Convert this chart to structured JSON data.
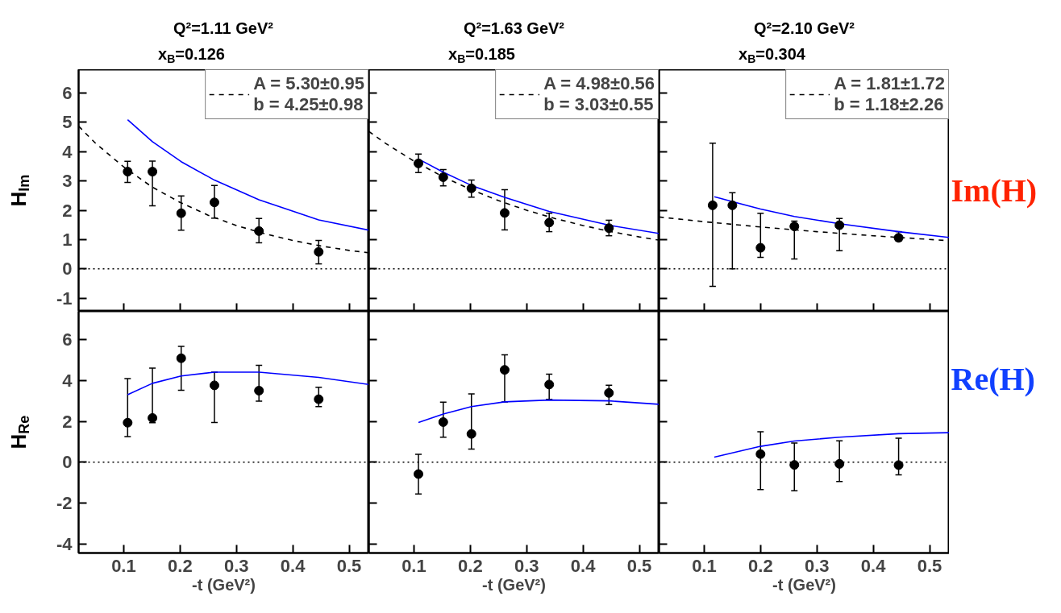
{
  "chart_data": [
    {
      "type": "scatter",
      "title": "Q²=1.11 GeV²",
      "subtitle": "x$_{B}$=0.126",
      "ylabel": "H$_{Im}$",
      "xlim": [
        0.02,
        0.535
      ],
      "ylim": [
        -1.45,
        6.8
      ],
      "xticks": [
        0.1,
        0.2,
        0.3,
        0.4,
        0.5
      ],
      "yticks": [
        -1,
        0,
        1,
        2,
        3,
        4,
        5,
        6
      ],
      "tick_labels": "y",
      "legend": "top right",
      "ref_lines": [
        {
          "axis": "y",
          "value": 0,
          "line_style": "dotted",
          "color": "#000000"
        }
      ],
      "series": [
        {
          "type": "line",
          "color": "#0000ff",
          "line_style": "solid",
          "x": [
            0.107,
            0.151,
            0.202,
            0.261,
            0.34,
            0.446,
            0.535
          ],
          "values": [
            5.09,
            4.34,
            3.66,
            3.03,
            2.36,
            1.67,
            1.32
          ]
        },
        {
          "type": "line",
          "name": "A = 5.30±0.95\nb = 4.25±0.98",
          "color": "#000000",
          "line_style": "dashed",
          "x": [
            0.02,
            0.05,
            0.1,
            0.15,
            0.2,
            0.25,
            0.3,
            0.35,
            0.4,
            0.45,
            0.5,
            0.535
          ],
          "values": [
            4.87,
            4.29,
            3.48,
            2.8,
            2.27,
            1.83,
            1.48,
            1.2,
            0.97,
            0.78,
            0.63,
            0.55
          ]
        },
        {
          "type": "scatter",
          "color": "#000000",
          "marker": "circle",
          "x": [
            0.107,
            0.151,
            0.202,
            0.261,
            0.34,
            0.446
          ],
          "values": [
            3.32,
            3.32,
            1.9,
            2.27,
            1.29,
            0.58
          ],
          "errors": [
            [
              2.95,
              3.67
            ],
            [
              2.15,
              3.68
            ],
            [
              1.32,
              2.49
            ],
            [
              1.73,
              2.85
            ],
            [
              0.89,
              1.72
            ],
            [
              0.17,
              0.97
            ]
          ]
        }
      ]
    },
    {
      "type": "scatter",
      "title": "Q²=1.63 GeV²",
      "subtitle": "x$_{B}$=0.185",
      "xlim": [
        0.02,
        0.535
      ],
      "ylim": [
        -1.45,
        6.8
      ],
      "xticks": [
        0.1,
        0.2,
        0.3,
        0.4,
        0.5
      ],
      "yticks": [
        -1,
        0,
        1,
        2,
        3,
        4,
        5,
        6
      ],
      "tick_labels": false,
      "legend": "top right",
      "ref_lines": [
        {
          "axis": "y",
          "value": 0,
          "line_style": "dotted",
          "color": "#000000"
        }
      ],
      "series": [
        {
          "type": "line",
          "color": "#0000ff",
          "line_style": "solid",
          "x": [
            0.108,
            0.152,
            0.202,
            0.261,
            0.34,
            0.446,
            0.535
          ],
          "values": [
            3.75,
            3.3,
            2.85,
            2.44,
            1.96,
            1.49,
            1.21
          ]
        },
        {
          "type": "line",
          "name": "A = 4.98±0.56\nb = 3.03±0.55",
          "color": "#000000",
          "line_style": "dashed",
          "x": [
            0.02,
            0.05,
            0.1,
            0.15,
            0.2,
            0.25,
            0.3,
            0.35,
            0.4,
            0.45,
            0.5,
            0.535
          ],
          "values": [
            4.69,
            4.28,
            3.68,
            3.16,
            2.72,
            2.33,
            2.0,
            1.72,
            1.48,
            1.27,
            1.09,
            0.98
          ]
        },
        {
          "type": "scatter",
          "color": "#000000",
          "marker": "circle",
          "x": [
            0.108,
            0.152,
            0.202,
            0.261,
            0.34,
            0.446
          ],
          "values": [
            3.6,
            3.13,
            2.75,
            1.91,
            1.58,
            1.39
          ],
          "errors": [
            [
              3.29,
              3.92
            ],
            [
              2.83,
              3.39
            ],
            [
              2.45,
              3.03
            ],
            [
              1.33,
              2.7
            ],
            [
              1.27,
              1.9
            ],
            [
              1.13,
              1.66
            ]
          ]
        }
      ]
    },
    {
      "type": "scatter",
      "title": "Q²=2.10 GeV²",
      "subtitle": "x$_{B}$=0.304",
      "xlim": [
        0.02,
        0.535
      ],
      "ylim": [
        -1.45,
        6.8
      ],
      "xticks": [
        0.1,
        0.2,
        0.3,
        0.4,
        0.5
      ],
      "yticks": [
        -1,
        0,
        1,
        2,
        3,
        4,
        5,
        6
      ],
      "tick_labels": false,
      "legend": "top right",
      "annotations": [
        "Im(H)"
      ],
      "ref_lines": [
        {
          "axis": "y",
          "value": 0,
          "line_style": "dotted",
          "color": "#000000"
        }
      ],
      "series": [
        {
          "type": "line",
          "color": "#0000ff",
          "line_style": "solid",
          "x": [
            0.118,
            0.2,
            0.26,
            0.34,
            0.445,
            0.535
          ],
          "values": [
            2.46,
            2.04,
            1.79,
            1.54,
            1.27,
            1.07
          ]
        },
        {
          "type": "line",
          "name": "A = 1.81±1.72\nb = 1.18±2.26",
          "color": "#000000",
          "line_style": "dashed",
          "x": [
            0.02,
            0.1,
            0.2,
            0.3,
            0.4,
            0.535
          ],
          "values": [
            1.77,
            1.61,
            1.43,
            1.27,
            1.13,
            0.96
          ]
        },
        {
          "type": "scatter",
          "color": "#000000",
          "marker": "circle",
          "x": [
            0.115,
            0.15,
            0.2,
            0.26,
            0.34,
            0.445
          ],
          "values": [
            2.17,
            2.17,
            0.72,
            1.45,
            1.49,
            1.06
          ],
          "errors": [
            [
              -0.6,
              4.29
            ],
            [
              0,
              2.6
            ],
            [
              0.39,
              1.9
            ],
            [
              0.34,
              1.63
            ],
            [
              0.62,
              1.72
            ],
            [
              0.95,
              1.27
            ]
          ]
        }
      ]
    },
    {
      "type": "scatter",
      "xlabel": "-t (GeV²)",
      "ylabel": "H$_{Re}$",
      "xlim": [
        0.02,
        0.535
      ],
      "ylim": [
        -4.45,
        7.4
      ],
      "xticks": [
        0.1,
        0.2,
        0.3,
        0.4,
        0.5
      ],
      "yticks": [
        -4,
        -2,
        0,
        2,
        4,
        6
      ],
      "ref_lines": [
        {
          "axis": "y",
          "value": 0,
          "line_style": "dotted",
          "color": "#000000"
        }
      ],
      "series": [
        {
          "type": "line",
          "color": "#0000ff",
          "line_style": "solid",
          "x": [
            0.107,
            0.151,
            0.202,
            0.261,
            0.34,
            0.446,
            0.535
          ],
          "values": [
            3.31,
            3.87,
            4.23,
            4.42,
            4.42,
            4.16,
            3.81
          ]
        },
        {
          "type": "scatter",
          "color": "#000000",
          "marker": "circle",
          "x": [
            0.107,
            0.151,
            0.202,
            0.261,
            0.34,
            0.446
          ],
          "values": [
            1.94,
            2.17,
            5.1,
            3.77,
            3.51,
            3.09
          ],
          "errors": [
            [
              1.26,
              4.1
            ],
            [
              1.94,
              4.62
            ],
            [
              3.53,
              5.68
            ],
            [
              1.95,
              4.42
            ],
            [
              3.0,
              4.75
            ],
            [
              2.73,
              3.68
            ]
          ]
        }
      ]
    },
    {
      "type": "scatter",
      "xlabel": "-t (GeV²)",
      "xlim": [
        0.02,
        0.535
      ],
      "ylim": [
        -4.45,
        7.4
      ],
      "xticks": [
        0.1,
        0.2,
        0.3,
        0.4,
        0.5
      ],
      "yticks": [
        -4,
        -2,
        0,
        2,
        4,
        6
      ],
      "tick_labels": "x",
      "ref_lines": [
        {
          "axis": "y",
          "value": 0,
          "line_style": "dotted",
          "color": "#000000"
        }
      ],
      "series": [
        {
          "type": "line",
          "color": "#0000ff",
          "line_style": "solid",
          "x": [
            0.108,
            0.152,
            0.202,
            0.261,
            0.34,
            0.446,
            0.535
          ],
          "values": [
            1.95,
            2.36,
            2.73,
            2.96,
            3.05,
            3.01,
            2.84
          ]
        },
        {
          "type": "scatter",
          "color": "#000000",
          "marker": "circle",
          "x": [
            0.108,
            0.152,
            0.202,
            0.261,
            0.34,
            0.446
          ],
          "values": [
            -0.58,
            1.97,
            1.39,
            4.53,
            3.81,
            3.4
          ],
          "errors": [
            [
              -1.56,
              0.39
            ],
            [
              1.23,
              2.95
            ],
            [
              0.65,
              3.35
            ],
            [
              2.96,
              5.27
            ],
            [
              3.08,
              4.32
            ],
            [
              2.83,
              3.78
            ]
          ]
        }
      ]
    },
    {
      "type": "scatter",
      "xlabel": "-t (GeV²)",
      "xlim": [
        0.02,
        0.535
      ],
      "ylim": [
        -4.45,
        7.4
      ],
      "xticks": [
        0.1,
        0.2,
        0.3,
        0.4,
        0.5
      ],
      "yticks": [
        -4,
        -2,
        0,
        2,
        4,
        6
      ],
      "tick_labels": "x",
      "annotations": [
        "Re(H)"
      ],
      "ref_lines": [
        {
          "axis": "y",
          "value": 0,
          "line_style": "dotted",
          "color": "#000000"
        }
      ],
      "series": [
        {
          "type": "line",
          "color": "#0000ff",
          "line_style": "solid",
          "x": [
            0.118,
            0.2,
            0.26,
            0.34,
            0.445,
            0.535
          ],
          "values": [
            0.25,
            0.78,
            1.04,
            1.23,
            1.4,
            1.45
          ]
        },
        {
          "type": "scatter",
          "color": "#000000",
          "marker": "circle",
          "x": [
            0.2,
            0.26,
            0.34,
            0.445
          ],
          "values": [
            0.4,
            -0.13,
            -0.08,
            -0.14
          ],
          "errors": [
            [
              -1.34,
              1.49
            ],
            [
              -1.4,
              0.94
            ],
            [
              -0.94,
              1.05
            ],
            [
              -0.62,
              1.18
            ]
          ]
        }
      ]
    }
  ]
}
